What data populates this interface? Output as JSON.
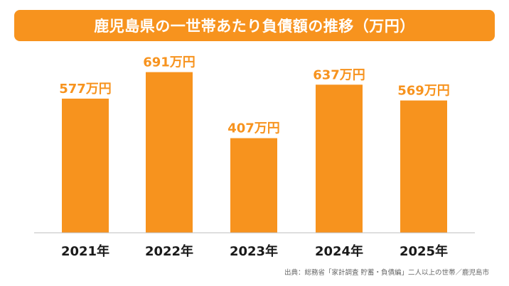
{
  "title": "鹿児島県の一世帯あたり負債額の推移（万円）",
  "source": "出典：総務省「家計調査 貯蓄・負債編」二人以上の世帯／鹿児島市",
  "colors": {
    "accent": "#F7931E",
    "axis": "#bdbdbd",
    "category_text": "#1a1a1a"
  },
  "chart_data": {
    "type": "bar",
    "title": "鹿児島県の一世帯あたり負債額の推移（万円）",
    "categories": [
      "2021年",
      "2022年",
      "2023年",
      "2024年",
      "2025年"
    ],
    "values": [
      577,
      691,
      407,
      637,
      569
    ],
    "data_labels": [
      "577万円",
      "691万円",
      "407万円",
      "637万円",
      "569万円"
    ],
    "xlabel": "",
    "ylabel": "",
    "ylim": [
      0,
      757
    ],
    "grid": false,
    "legend": "none"
  }
}
